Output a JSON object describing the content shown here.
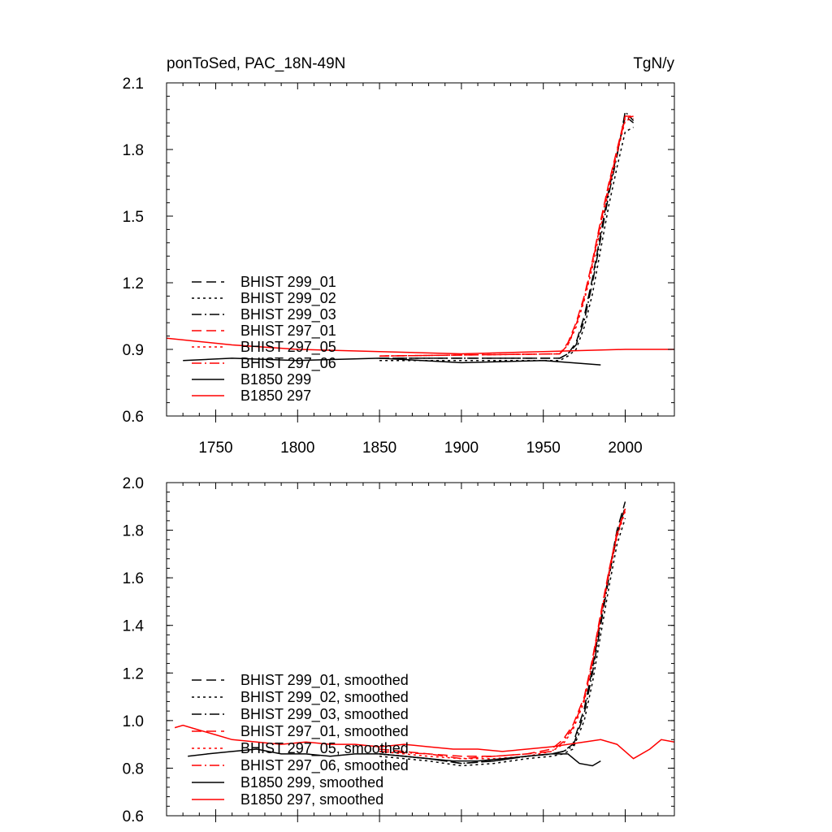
{
  "figure": {
    "title_left": "ponToSed, PAC_18N-49N",
    "title_right": "TgN/y"
  },
  "styles": {
    "black": "#000000",
    "red": "#ff0000"
  },
  "series_styles": [
    {
      "key": "bhist_299_01",
      "color": "#000000",
      "dash": "dash"
    },
    {
      "key": "bhist_299_02",
      "color": "#000000",
      "dash": "dot"
    },
    {
      "key": "bhist_299_03",
      "color": "#000000",
      "dash": "dashdot"
    },
    {
      "key": "bhist_297_01",
      "color": "#ff0000",
      "dash": "dash"
    },
    {
      "key": "bhist_297_05",
      "color": "#ff0000",
      "dash": "dot"
    },
    {
      "key": "bhist_297_06",
      "color": "#ff0000",
      "dash": "dashdot"
    },
    {
      "key": "b1850_299",
      "color": "#000000",
      "dash": "solid"
    },
    {
      "key": "b1850_297",
      "color": "#ff0000",
      "dash": "solid"
    }
  ],
  "chart_data": [
    {
      "type": "line",
      "panel": "top",
      "title_left": "ponToSed, PAC_18N-49N",
      "title_right": "TgN/y",
      "xlim": [
        1720,
        2030
      ],
      "ylim": [
        0.6,
        2.1
      ],
      "x_ticks": [
        1750,
        1800,
        1850,
        1900,
        1950,
        2000
      ],
      "y_ticks": [
        0.6,
        0.9,
        1.2,
        1.5,
        1.8,
        2.1
      ],
      "y_tick_labels": [
        "0.6",
        "0.9",
        "1.2",
        "1.5",
        "1.8",
        "2.1"
      ],
      "legend_position": "bottom-left",
      "series": [
        {
          "name": "BHIST 299_01",
          "key": "bhist_299_01",
          "x": [
            1850,
            1960,
            1965,
            1970,
            1975,
            1980,
            1985,
            1990,
            1995,
            2000,
            2005
          ],
          "values": [
            0.86,
            0.86,
            0.88,
            0.93,
            1.05,
            1.22,
            1.42,
            1.62,
            1.78,
            1.95,
            1.92
          ]
        },
        {
          "name": "BHIST 299_02",
          "key": "bhist_299_02",
          "x": [
            1850,
            1960,
            1965,
            1970,
            1975,
            1980,
            1985,
            1990,
            1995,
            2000,
            2005
          ],
          "values": [
            0.85,
            0.85,
            0.87,
            0.9,
            1.0,
            1.15,
            1.35,
            1.55,
            1.72,
            1.88,
            1.9
          ]
        },
        {
          "name": "BHIST 299_03",
          "key": "bhist_299_03",
          "x": [
            1850,
            1960,
            1965,
            1970,
            1975,
            1980,
            1985,
            1990,
            1995,
            2000,
            2005
          ],
          "values": [
            0.86,
            0.86,
            0.88,
            0.92,
            1.03,
            1.2,
            1.4,
            1.6,
            1.77,
            1.97,
            1.93
          ]
        },
        {
          "name": "BHIST 297_01",
          "key": "bhist_297_01",
          "x": [
            1850,
            1960,
            1965,
            1970,
            1975,
            1980,
            1985,
            1990,
            1995,
            2000,
            2005
          ],
          "values": [
            0.87,
            0.88,
            0.93,
            1.02,
            1.14,
            1.3,
            1.48,
            1.65,
            1.8,
            1.95,
            1.95
          ]
        },
        {
          "name": "BHIST 297_05",
          "key": "bhist_297_05",
          "x": [
            1850,
            1960,
            1965,
            1970,
            1975,
            1980,
            1985,
            1990,
            1995,
            2000,
            2005
          ],
          "values": [
            0.87,
            0.88,
            0.92,
            1.0,
            1.12,
            1.27,
            1.45,
            1.62,
            1.78,
            1.93,
            1.94
          ]
        },
        {
          "name": "BHIST 297_06",
          "key": "bhist_297_06",
          "x": [
            1850,
            1960,
            1965,
            1970,
            1975,
            1980,
            1985,
            1990,
            1995,
            2000,
            2005
          ],
          "values": [
            0.87,
            0.88,
            0.92,
            1.01,
            1.13,
            1.29,
            1.47,
            1.64,
            1.79,
            1.94,
            1.95
          ]
        },
        {
          "name": "B1850 299",
          "key": "b1850_299",
          "x": [
            1730,
            1760,
            1800,
            1850,
            1900,
            1950,
            1985
          ],
          "values": [
            0.85,
            0.86,
            0.85,
            0.86,
            0.84,
            0.85,
            0.83
          ]
        },
        {
          "name": "B1850 297",
          "key": "b1850_297",
          "x": [
            1720,
            1760,
            1800,
            1850,
            1900,
            1950,
            2000,
            2030
          ],
          "values": [
            0.95,
            0.92,
            0.9,
            0.89,
            0.88,
            0.89,
            0.9,
            0.9
          ]
        }
      ]
    },
    {
      "type": "line",
      "panel": "bottom",
      "xlim": [
        1720,
        2030
      ],
      "ylim": [
        0.6,
        2.0
      ],
      "x_ticks": [
        1750,
        1800,
        1850,
        1900,
        1950,
        2000
      ],
      "y_ticks": [
        0.6,
        0.8,
        1.0,
        1.2,
        1.4,
        1.6,
        1.8,
        2.0
      ],
      "y_tick_labels": [
        "0.6",
        "0.8",
        "1.0",
        "1.2",
        "1.4",
        "1.6",
        "1.8",
        "2.0"
      ],
      "legend_position": "bottom-left",
      "series": [
        {
          "name": "BHIST 299_01, smoothed",
          "key": "bhist_299_01",
          "x": [
            1850,
            1880,
            1900,
            1920,
            1940,
            1955,
            1962,
            1968,
            1975,
            1980,
            1985,
            1990,
            1995,
            2000
          ],
          "values": [
            0.86,
            0.84,
            0.82,
            0.83,
            0.85,
            0.86,
            0.87,
            0.9,
            1.05,
            1.22,
            1.42,
            1.62,
            1.8,
            1.92
          ]
        },
        {
          "name": "BHIST 299_02, smoothed",
          "key": "bhist_299_02",
          "x": [
            1850,
            1880,
            1900,
            1920,
            1940,
            1955,
            1962,
            1968,
            1975,
            1980,
            1985,
            1990,
            1995,
            2000
          ],
          "values": [
            0.85,
            0.83,
            0.81,
            0.82,
            0.84,
            0.85,
            0.86,
            0.88,
            1.0,
            1.16,
            1.36,
            1.56,
            1.74,
            1.85
          ]
        },
        {
          "name": "BHIST 299_03, smoothed",
          "key": "bhist_299_03",
          "x": [
            1850,
            1880,
            1900,
            1920,
            1940,
            1955,
            1962,
            1968,
            1975,
            1980,
            1985,
            1990,
            1995,
            2000
          ],
          "values": [
            0.86,
            0.84,
            0.82,
            0.83,
            0.85,
            0.86,
            0.87,
            0.89,
            1.03,
            1.2,
            1.4,
            1.6,
            1.78,
            1.9
          ]
        },
        {
          "name": "BHIST 297_01, smoothed",
          "key": "bhist_297_01",
          "x": [
            1850,
            1880,
            1900,
            1920,
            1940,
            1955,
            1962,
            1968,
            1975,
            1980,
            1985,
            1990,
            1995,
            2000
          ],
          "values": [
            0.88,
            0.86,
            0.85,
            0.85,
            0.86,
            0.88,
            0.92,
            0.98,
            1.1,
            1.26,
            1.45,
            1.63,
            1.79,
            1.89
          ]
        },
        {
          "name": "BHIST 297_05, smoothed",
          "key": "bhist_297_05",
          "x": [
            1850,
            1880,
            1900,
            1920,
            1940,
            1955,
            1962,
            1968,
            1975,
            1980,
            1985,
            1990,
            1995,
            2000
          ],
          "values": [
            0.87,
            0.85,
            0.84,
            0.84,
            0.85,
            0.87,
            0.9,
            0.96,
            1.08,
            1.24,
            1.43,
            1.61,
            1.77,
            1.88
          ]
        },
        {
          "name": "BHIST 297_06, smoothed",
          "key": "bhist_297_06",
          "x": [
            1850,
            1880,
            1900,
            1920,
            1940,
            1955,
            1962,
            1968,
            1975,
            1980,
            1985,
            1990,
            1995,
            2000
          ],
          "values": [
            0.87,
            0.86,
            0.84,
            0.85,
            0.86,
            0.87,
            0.91,
            0.97,
            1.09,
            1.25,
            1.44,
            1.62,
            1.78,
            1.89
          ]
        },
        {
          "name": "B1850 299, smoothed",
          "key": "b1850_299",
          "x": [
            1733,
            1745,
            1760,
            1775,
            1790,
            1805,
            1820,
            1835,
            1850,
            1865,
            1880,
            1895,
            1910,
            1925,
            1940,
            1955,
            1965,
            1972,
            1980,
            1985
          ],
          "values": [
            0.85,
            0.86,
            0.87,
            0.88,
            0.86,
            0.86,
            0.85,
            0.86,
            0.86,
            0.85,
            0.84,
            0.83,
            0.83,
            0.84,
            0.85,
            0.86,
            0.86,
            0.82,
            0.81,
            0.83
          ]
        },
        {
          "name": "B1850 297, smoothed",
          "key": "b1850_297",
          "x": [
            1725,
            1730,
            1740,
            1750,
            1760,
            1775,
            1790,
            1805,
            1820,
            1835,
            1850,
            1865,
            1880,
            1895,
            1910,
            1925,
            1940,
            1955,
            1965,
            1975,
            1985,
            1995,
            2005,
            2015,
            2022,
            2030
          ],
          "values": [
            0.97,
            0.98,
            0.96,
            0.94,
            0.92,
            0.91,
            0.9,
            0.91,
            0.9,
            0.9,
            0.89,
            0.9,
            0.89,
            0.88,
            0.88,
            0.87,
            0.88,
            0.89,
            0.9,
            0.91,
            0.92,
            0.9,
            0.84,
            0.88,
            0.92,
            0.91
          ]
        }
      ]
    }
  ]
}
